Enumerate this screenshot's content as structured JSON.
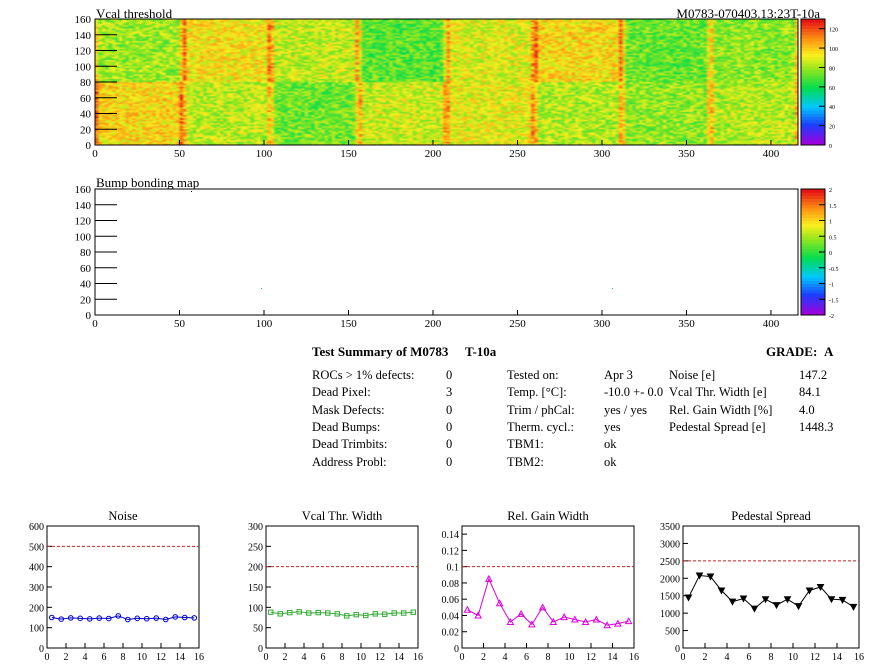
{
  "heatmaps": [
    {
      "title": "Vcal threshold",
      "module_label": "M0783-070403.13:23T-10a",
      "x_ticks": [
        "0",
        "50",
        "100",
        "150",
        "200",
        "250",
        "300",
        "350",
        "400"
      ],
      "y_ticks": [
        "0",
        "20",
        "40",
        "60",
        "80",
        "100",
        "120",
        "140",
        "160"
      ],
      "palette_ticks": [
        "0",
        "20",
        "40",
        "60",
        "80",
        "100",
        "120"
      ]
    },
    {
      "title": "Bump bonding map",
      "x_ticks": [
        "0",
        "50",
        "100",
        "150",
        "200",
        "250",
        "300",
        "350",
        "400"
      ],
      "y_ticks": [
        "0",
        "20",
        "40",
        "60",
        "80",
        "100",
        "120",
        "140",
        "160"
      ],
      "palette_ticks": [
        "-2",
        "-1.5",
        "-1",
        "-0.5",
        "0",
        "0.5",
        "1",
        "1.5",
        "2"
      ]
    }
  ],
  "summary": {
    "title": "Test Summary of M0783",
    "temp_label": "T-10a",
    "grade_label": "GRADE:",
    "grade": "A",
    "col1": [
      {
        "label": "ROCs > 1% defects:",
        "value": "0"
      },
      {
        "label": "Dead Pixel:",
        "value": "3"
      },
      {
        "label": "Mask Defects:",
        "value": "0"
      },
      {
        "label": "Dead Bumps:",
        "value": "0"
      },
      {
        "label": "Dead Trimbits:",
        "value": "0"
      },
      {
        "label": "Address Probl:",
        "value": "0"
      }
    ],
    "col2": [
      {
        "label": "Tested on:",
        "value": "Apr 3"
      },
      {
        "label": "Temp. [°C]:",
        "value": "-10.0 +- 0.0"
      },
      {
        "label": "Trim / phCal:",
        "value": "yes / yes"
      },
      {
        "label": "Therm. cycl.:",
        "value": "yes"
      },
      {
        "label": "TBM1:",
        "value": "ok"
      },
      {
        "label": "TBM2:",
        "value": "ok"
      }
    ],
    "col3": [
      {
        "label": "Noise [e]",
        "value": "147.2"
      },
      {
        "label": "Vcal Thr. Width [e]",
        "value": "84.1"
      },
      {
        "label": "Rel. Gain Width [%]",
        "value": "4.0"
      },
      {
        "label": "Pedestal Spread [e]",
        "value": "1448.3"
      }
    ]
  },
  "chart_data": [
    {
      "type": "line",
      "title": "Noise",
      "color": "#0000cc",
      "marker": "circle",
      "x": [
        0.5,
        1.5,
        2.5,
        3.5,
        4.5,
        5.5,
        6.5,
        7.5,
        8.5,
        9.5,
        10.5,
        11.5,
        12.5,
        13.5,
        14.5,
        15.5
      ],
      "values": [
        150,
        142,
        148,
        146,
        143,
        147,
        145,
        158,
        140,
        146,
        144,
        147,
        140,
        153,
        150,
        148
      ],
      "ylim": [
        0,
        600
      ],
      "xlim": [
        0,
        16
      ],
      "threshold": 500,
      "y_ticks": [
        "0",
        "100",
        "200",
        "300",
        "400",
        "500",
        "600"
      ],
      "x_ticks": [
        "0",
        "2",
        "4",
        "6",
        "8",
        "10",
        "12",
        "14",
        "16"
      ]
    },
    {
      "type": "line",
      "title": "Vcal Thr. Width",
      "color": "#33aa33",
      "marker": "square",
      "x": [
        0.5,
        1.5,
        2.5,
        3.5,
        4.5,
        5.5,
        6.5,
        7.5,
        8.5,
        9.5,
        10.5,
        11.5,
        12.5,
        13.5,
        14.5,
        15.5
      ],
      "values": [
        88,
        84,
        87,
        89,
        86,
        87,
        86,
        84,
        79,
        82,
        80,
        84,
        83,
        86,
        86,
        88
      ],
      "ylim": [
        0,
        300
      ],
      "xlim": [
        0,
        16
      ],
      "threshold": 200,
      "y_ticks": [
        "0",
        "50",
        "100",
        "150",
        "200",
        "250",
        "300"
      ],
      "x_ticks": [
        "0",
        "2",
        "4",
        "6",
        "8",
        "10",
        "12",
        "14",
        "16"
      ]
    },
    {
      "type": "line",
      "title": "Rel. Gain Width",
      "color": "#dd00dd",
      "marker": "triangle",
      "x": [
        0.5,
        1.5,
        2.5,
        3.5,
        4.5,
        5.5,
        6.5,
        7.5,
        8.5,
        9.5,
        10.5,
        11.5,
        12.5,
        13.5,
        14.5,
        15.5
      ],
      "values": [
        0.047,
        0.04,
        0.085,
        0.055,
        0.032,
        0.042,
        0.029,
        0.05,
        0.032,
        0.038,
        0.035,
        0.032,
        0.035,
        0.028,
        0.03,
        0.033
      ],
      "ylim": [
        0,
        0.15
      ],
      "xlim": [
        0,
        16
      ],
      "threshold": 0.1,
      "y_ticks": [
        "0",
        "0.02",
        "0.04",
        "0.06",
        "0.08",
        "0.1",
        "0.12",
        "0.14"
      ],
      "x_ticks": [
        "0",
        "2",
        "4",
        "6",
        "8",
        "10",
        "12",
        "14",
        "16"
      ]
    },
    {
      "type": "line",
      "title": "Pedestal Spread",
      "color": "#000000",
      "marker": "triangle-down",
      "x": [
        0.5,
        1.5,
        2.5,
        3.5,
        4.5,
        5.5,
        6.5,
        7.5,
        8.5,
        9.5,
        10.5,
        11.5,
        12.5,
        13.5,
        14.5,
        15.5
      ],
      "values": [
        1450,
        2080,
        2050,
        1650,
        1330,
        1420,
        1130,
        1400,
        1230,
        1400,
        1200,
        1650,
        1750,
        1400,
        1380,
        1180
      ],
      "ylim": [
        0,
        3500
      ],
      "xlim": [
        0,
        16
      ],
      "threshold": 2500,
      "y_ticks": [
        "0",
        "500",
        "1000",
        "1500",
        "2000",
        "2500",
        "3000",
        "3500"
      ],
      "x_ticks": [
        "0",
        "2",
        "4",
        "6",
        "8",
        "10",
        "12",
        "14",
        "16"
      ]
    }
  ]
}
